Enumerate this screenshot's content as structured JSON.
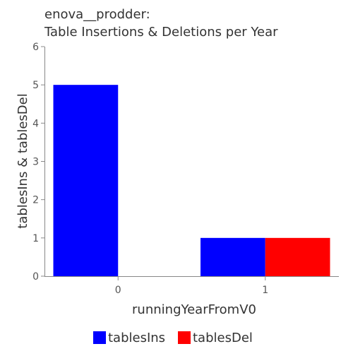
{
  "chart_data": {
    "type": "bar",
    "title_line1": "enova__prodder:",
    "title_line2": "Table Insertions & Deletions per Year",
    "xlabel": "runningYearFromV0",
    "ylabel": "tablesIns & tablesDel",
    "categories": [
      "0",
      "1"
    ],
    "series": [
      {
        "name": "tablesIns",
        "values": [
          5,
          1
        ],
        "color": "#0000ff"
      },
      {
        "name": "tablesDel",
        "values": [
          0,
          1
        ],
        "color": "#ff0000"
      }
    ],
    "ylim": [
      0,
      6
    ],
    "yticks": [
      "0",
      "1",
      "2",
      "3",
      "4",
      "5",
      "6"
    ],
    "grid": false,
    "legend_position": "bottom"
  }
}
